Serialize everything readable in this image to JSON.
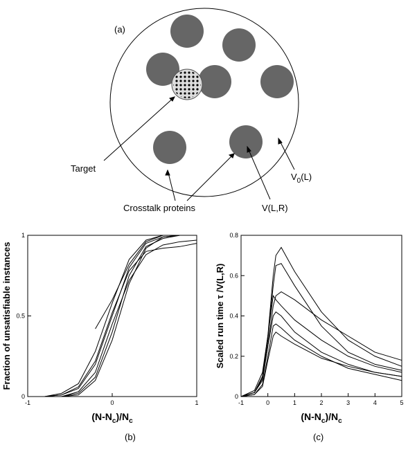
{
  "panels": {
    "a": "(a)",
    "b": "(b)",
    "c": "(c)"
  },
  "diagram": {
    "target": "Target",
    "crosstalk": "Crosstalk proteins",
    "v_lr": "V(L,R)",
    "v0": {
      "main": "V",
      "sub": "0",
      "rest": "(L)"
    }
  },
  "chart_data": [
    {
      "type": "line",
      "ylabel": "Fraction of unsatisfiable instances",
      "xlabel": [
        "(N-N",
        "c",
        ")/N",
        "c"
      ],
      "x": [
        -0.8,
        -0.6,
        -0.4,
        -0.2,
        0,
        0.2,
        0.4,
        0.6,
        0.8,
        1
      ],
      "xlim": [
        -1,
        1
      ],
      "xticks": [
        -1,
        0,
        1
      ],
      "ylim": [
        0,
        1
      ],
      "yticks": [
        0,
        0.5,
        1
      ],
      "series": [
        {
          "color": "#000000",
          "values": [
            0,
            0.01,
            0.05,
            0.2,
            0.5,
            0.8,
            0.95,
            0.99,
            1,
            1
          ]
        },
        {
          "color": "#000000",
          "values": [
            0,
            0,
            0.02,
            0.12,
            0.4,
            0.75,
            0.93,
            0.98,
            1,
            1
          ]
        },
        {
          "color": "#000000",
          "values": [
            0,
            0.02,
            0.08,
            0.28,
            0.58,
            0.85,
            0.97,
            1,
            1,
            1
          ]
        },
        {
          "color": "#000000",
          "values": [
            0,
            0,
            0.03,
            0.15,
            0.45,
            0.72,
            0.88,
            0.94,
            0.96,
            0.97
          ]
        },
        {
          "color": "#000000",
          "values": [
            0,
            0.01,
            0.06,
            0.22,
            0.52,
            0.78,
            0.9,
            0.92,
            0.93,
            0.95
          ]
        },
        {
          "color": "#000000",
          "values": [
            0,
            0,
            0.01,
            0.1,
            0.35,
            0.7,
            0.92,
            0.99,
            1,
            1
          ]
        },
        {
          "color": "#000000",
          "values": [
            null,
            null,
            null,
            0.42,
            0.6,
            0.82,
            0.96,
            1,
            1,
            1
          ]
        }
      ]
    },
    {
      "type": "line",
      "ylabel": "Scaled run time τ /V(L,R)",
      "xlabel": [
        "(N-N",
        "c",
        ")/N",
        "c"
      ],
      "x": [
        -1,
        -0.5,
        -0.2,
        0,
        0.2,
        0.3,
        0.5,
        1,
        2,
        3,
        4,
        5
      ],
      "xlim": [
        -1,
        5
      ],
      "xticks": [
        -1,
        0,
        1,
        2,
        3,
        4,
        5
      ],
      "ylim": [
        0,
        0.8
      ],
      "yticks": [
        0,
        0.2,
        0.4,
        0.6,
        0.8
      ],
      "series": [
        {
          "color": "#000000",
          "values": [
            0,
            0.02,
            0.1,
            0.3,
            0.6,
            0.7,
            0.74,
            0.62,
            0.42,
            0.28,
            0.2,
            0.15
          ]
        },
        {
          "color": "#000000",
          "values": [
            0,
            0.03,
            0.12,
            0.3,
            0.5,
            0.48,
            0.45,
            0.38,
            0.28,
            0.2,
            0.15,
            0.12
          ]
        },
        {
          "color": "#000000",
          "values": [
            0,
            0.02,
            0.08,
            0.25,
            0.4,
            0.42,
            0.4,
            0.32,
            0.22,
            0.16,
            0.12,
            0.1
          ]
        },
        {
          "color": "#000000",
          "values": [
            0,
            0.01,
            0.06,
            0.2,
            0.35,
            0.36,
            0.34,
            0.28,
            0.2,
            0.14,
            0.11,
            0.08
          ]
        },
        {
          "color": "#000000",
          "values": [
            0,
            0.02,
            0.09,
            0.25,
            0.45,
            0.5,
            0.52,
            0.48,
            0.38,
            0.3,
            0.22,
            0.18
          ]
        },
        {
          "color": "#000000",
          "values": [
            0,
            0.01,
            0.05,
            0.18,
            0.3,
            0.32,
            0.3,
            0.26,
            0.19,
            0.15,
            0.12,
            0.1
          ]
        },
        {
          "color": "#000000",
          "values": [
            0,
            0.02,
            0.1,
            0.28,
            0.55,
            0.65,
            0.66,
            0.55,
            0.35,
            0.22,
            0.16,
            0.13
          ]
        }
      ]
    }
  ]
}
